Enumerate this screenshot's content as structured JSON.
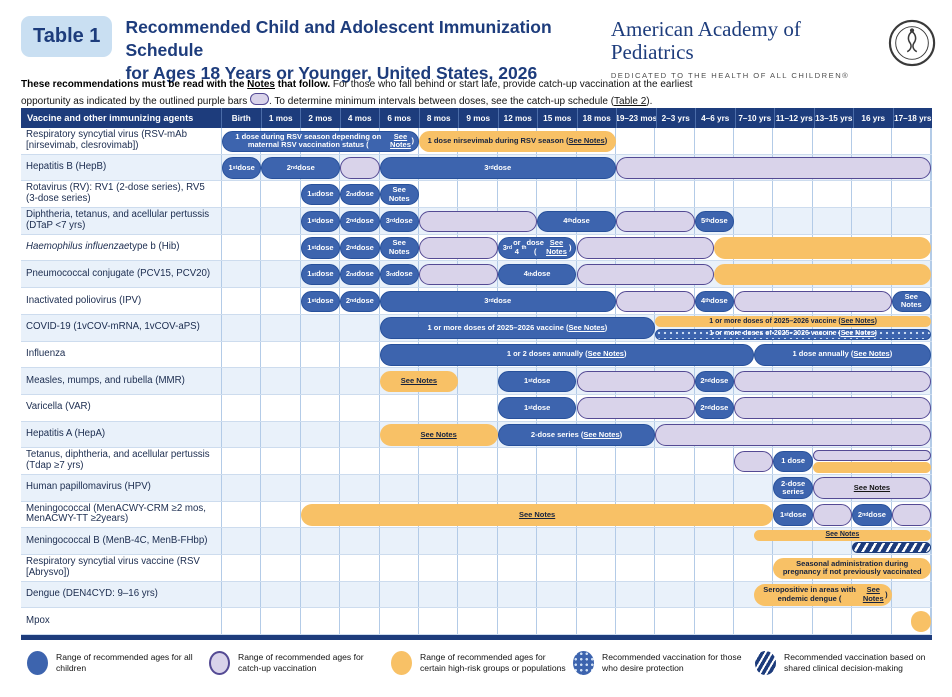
{
  "header": {
    "table_label": "Table 1",
    "title_line1": "Recommended Child and Adolescent Immunization Schedule",
    "title_line2": "for Ages 18 Years or Younger, United States, 2026",
    "aap_name": "American Academy of Pediatrics",
    "aap_tagline": "DEDICATED TO THE HEALTH OF ALL CHILDREN®"
  },
  "intro": {
    "bold": "These recommendations must be read with the *Notes* that follow.",
    "mid": " For those who fall behind or start late, provide catch-up vaccination at the earliest opportunity as indicated by the outlined purple bars ",
    "end": ". To determine minimum intervals between doses, see the catch-up schedule (*Table 2*)."
  },
  "colors": {
    "navy": "#1d3c7c",
    "blue_bar": "#3d64ae",
    "purple_fill": "#d9d3ea",
    "purple_border": "#544a94",
    "orange_bar": "#f8c166",
    "pale_row": "#e9f1fa",
    "grid_line": "#b3cbe7"
  },
  "table": {
    "corner_label": "Vaccine and other immunizing agents",
    "columns": [
      "Birth",
      "1 mos",
      "2 mos",
      "4 mos",
      "6 mos",
      "8 mos",
      "9 mos",
      "12 mos",
      "15 mos",
      "18 mos",
      "19–23 mos",
      "2–3 yrs",
      "4–6 yrs",
      "7–10 yrs",
      "11–12 yrs",
      "13–15 yrs",
      "16 yrs",
      "17–18 yrs"
    ],
    "rows": [
      {
        "label": "Respiratory syncytial virus (RSV-mAb [nirsevimab, clesrovimab])",
        "bars": [
          {
            "type": "blue",
            "lane": "full",
            "start": 0,
            "end": 5,
            "label": "1 dose during RSV season depending on maternal RSV vaccination status (*See Notes*)"
          },
          {
            "type": "orange",
            "lane": "full",
            "start": 5,
            "end": 10,
            "label": "1 dose nirsevimab during RSV season (*See Notes*)"
          }
        ]
      },
      {
        "label": "Hepatitis B (HepB)",
        "bars": [
          {
            "type": "blue",
            "lane": "full",
            "start": 0,
            "end": 1,
            "label": "1^st^ dose"
          },
          {
            "type": "blue",
            "lane": "full",
            "start": 1,
            "end": 3,
            "label": "2^nd^ dose"
          },
          {
            "type": "purple",
            "lane": "full",
            "start": 3,
            "end": 4,
            "label": ""
          },
          {
            "type": "blue",
            "lane": "full",
            "start": 4,
            "end": 10,
            "label": "3^rd^ dose"
          },
          {
            "type": "purple",
            "lane": "full",
            "start": 10,
            "end": 18,
            "label": ""
          }
        ]
      },
      {
        "label": "Rotavirus (RV): RV1 (2-dose series), RV5 (3-dose series)",
        "bars": [
          {
            "type": "blue",
            "lane": "full",
            "start": 2,
            "end": 3,
            "label": "1^st^ dose"
          },
          {
            "type": "blue",
            "lane": "full",
            "start": 3,
            "end": 4,
            "label": "2^nd^ dose"
          },
          {
            "type": "blue",
            "lane": "full",
            "start": 4,
            "end": 5,
            "label": "See Notes"
          }
        ]
      },
      {
        "label": "Diphtheria, tetanus, and acellular pertussis (DTaP <7 yrs)",
        "bars": [
          {
            "type": "blue",
            "lane": "full",
            "start": 2,
            "end": 3,
            "label": "1^st^ dose"
          },
          {
            "type": "blue",
            "lane": "full",
            "start": 3,
            "end": 4,
            "label": "2^nd^ dose"
          },
          {
            "type": "blue",
            "lane": "full",
            "start": 4,
            "end": 5,
            "label": "3^rd^ dose"
          },
          {
            "type": "purple",
            "lane": "full",
            "start": 5,
            "end": 8,
            "label": ""
          },
          {
            "type": "blue",
            "lane": "full",
            "start": 8,
            "end": 10,
            "label": "4^th^ dose"
          },
          {
            "type": "purple",
            "lane": "full",
            "start": 10,
            "end": 12,
            "label": ""
          },
          {
            "type": "blue",
            "lane": "full",
            "start": 12,
            "end": 13,
            "label": "5^th^ dose"
          }
        ]
      },
      {
        "label": "_Haemophilus influenzae_ type b (Hib)",
        "bars": [
          {
            "type": "blue",
            "lane": "full",
            "start": 2,
            "end": 3,
            "label": "1^st^ dose"
          },
          {
            "type": "blue",
            "lane": "full",
            "start": 3,
            "end": 4,
            "label": "2^nd^ dose"
          },
          {
            "type": "blue",
            "lane": "full",
            "start": 4,
            "end": 5,
            "label": "See Notes"
          },
          {
            "type": "purple",
            "lane": "full",
            "start": 5,
            "end": 7,
            "label": ""
          },
          {
            "type": "blue",
            "lane": "full",
            "start": 7,
            "end": 9,
            "label": "3^rd^ or 4^th^ dose (*See Notes*)"
          },
          {
            "type": "purple",
            "lane": "full",
            "start": 9,
            "end": 12.5,
            "label": ""
          },
          {
            "type": "orange",
            "lane": "full",
            "start": 12.5,
            "end": 18,
            "label": ""
          }
        ]
      },
      {
        "label": "Pneumococcal conjugate (PCV15, PCV20)",
        "bars": [
          {
            "type": "blue",
            "lane": "full",
            "start": 2,
            "end": 3,
            "label": "1^st^ dose"
          },
          {
            "type": "blue",
            "lane": "full",
            "start": 3,
            "end": 4,
            "label": "2^nd^ dose"
          },
          {
            "type": "blue",
            "lane": "full",
            "start": 4,
            "end": 5,
            "label": "3^rd^ dose"
          },
          {
            "type": "purple",
            "lane": "full",
            "start": 5,
            "end": 7,
            "label": ""
          },
          {
            "type": "blue",
            "lane": "full",
            "start": 7,
            "end": 9,
            "label": "4^th^ dose"
          },
          {
            "type": "purple",
            "lane": "full",
            "start": 9,
            "end": 12.5,
            "label": ""
          },
          {
            "type": "orange",
            "lane": "full",
            "start": 12.5,
            "end": 18,
            "label": ""
          }
        ]
      },
      {
        "label": "Inactivated poliovirus (IPV)",
        "bars": [
          {
            "type": "blue",
            "lane": "full",
            "start": 2,
            "end": 3,
            "label": "1^st^ dose"
          },
          {
            "type": "blue",
            "lane": "full",
            "start": 3,
            "end": 4,
            "label": "2^nd^ dose"
          },
          {
            "type": "blue",
            "lane": "full",
            "start": 4,
            "end": 10,
            "label": "3^rd^ dose"
          },
          {
            "type": "purple",
            "lane": "full",
            "start": 10,
            "end": 12,
            "label": ""
          },
          {
            "type": "blue",
            "lane": "full",
            "start": 12,
            "end": 13,
            "label": "4^th^ dose"
          },
          {
            "type": "purple",
            "lane": "full",
            "start": 13,
            "end": 17,
            "label": ""
          },
          {
            "type": "blue",
            "lane": "full",
            "start": 17,
            "end": 18,
            "label": "See Notes"
          }
        ]
      },
      {
        "label": "COVID-19 (1vCOV-mRNA, 1vCOV-aPS)",
        "bars": [
          {
            "type": "blue",
            "lane": "full",
            "start": 4,
            "end": 11,
            "label": "1 or more doses of 2025–2026 vaccine (*See Notes*)"
          },
          {
            "type": "orange",
            "lane": "top",
            "start": 11,
            "end": 18,
            "label": "1 or more doses of 2025–2026 vaccine (*See Notes*)"
          },
          {
            "type": "dotted",
            "lane": "bottom",
            "start": 11,
            "end": 18,
            "label": "1 or more doses of 2025–2026 vaccine (*See Notes*)"
          }
        ]
      },
      {
        "label": "Influenza",
        "bars": [
          {
            "type": "blue",
            "lane": "full",
            "start": 4,
            "end": 13.5,
            "label": "1 or 2 doses annually (*See Notes*)"
          },
          {
            "type": "blue",
            "lane": "full",
            "start": 13.5,
            "end": 18,
            "label": "1 dose annually (*See Notes*)"
          }
        ]
      },
      {
        "label": "Measles, mumps, and rubella (MMR)",
        "bars": [
          {
            "type": "orange",
            "lane": "full",
            "start": 4,
            "end": 6,
            "label": "*See Notes*"
          },
          {
            "type": "blue",
            "lane": "full",
            "start": 7,
            "end": 9,
            "label": "1^st^ dose"
          },
          {
            "type": "purple",
            "lane": "full",
            "start": 9,
            "end": 12,
            "label": ""
          },
          {
            "type": "blue",
            "lane": "full",
            "start": 12,
            "end": 13,
            "label": "2^nd^ dose"
          },
          {
            "type": "purple",
            "lane": "full",
            "start": 13,
            "end": 18,
            "label": ""
          }
        ]
      },
      {
        "label": "Varicella (VAR)",
        "bars": [
          {
            "type": "blue",
            "lane": "full",
            "start": 7,
            "end": 9,
            "label": "1^st^ dose"
          },
          {
            "type": "purple",
            "lane": "full",
            "start": 9,
            "end": 12,
            "label": ""
          },
          {
            "type": "blue",
            "lane": "full",
            "start": 12,
            "end": 13,
            "label": "2^nd^ dose"
          },
          {
            "type": "purple",
            "lane": "full",
            "start": 13,
            "end": 18,
            "label": ""
          }
        ]
      },
      {
        "label": "Hepatitis A (HepA)",
        "bars": [
          {
            "type": "orange",
            "lane": "full",
            "start": 4,
            "end": 7,
            "label": "*See Notes*"
          },
          {
            "type": "blue",
            "lane": "full",
            "start": 7,
            "end": 11,
            "label": "2-dose series (*See Notes*)"
          },
          {
            "type": "purple",
            "lane": "full",
            "start": 11,
            "end": 18,
            "label": ""
          }
        ]
      },
      {
        "label": "Tetanus, diphtheria, and acellular pertussis (Tdap ≥7 yrs)",
        "bars": [
          {
            "type": "purple",
            "lane": "full",
            "start": 13,
            "end": 14,
            "label": ""
          },
          {
            "type": "blue",
            "lane": "full",
            "start": 14,
            "end": 15,
            "label": "1 dose"
          },
          {
            "type": "purple",
            "lane": "top",
            "start": 15,
            "end": 18,
            "label": ""
          },
          {
            "type": "orange",
            "lane": "bottom",
            "start": 15,
            "end": 18,
            "label": ""
          }
        ]
      },
      {
        "label": "Human papillomavirus (HPV)",
        "bars": [
          {
            "type": "blue",
            "lane": "full",
            "start": 14,
            "end": 15,
            "label": "2-dose series"
          },
          {
            "type": "purple",
            "lane": "full",
            "start": 15,
            "end": 18,
            "label": "*See Notes*"
          }
        ]
      },
      {
        "label": "Meningococcal (MenACWY-CRM ≥2 mos, MenACWY-TT ≥2years)",
        "bars": [
          {
            "type": "orange",
            "lane": "full",
            "start": 2,
            "end": 14,
            "label": "*See Notes*"
          },
          {
            "type": "blue",
            "lane": "full",
            "start": 14,
            "end": 15,
            "label": "1^st^ dose"
          },
          {
            "type": "purple",
            "lane": "full",
            "start": 15,
            "end": 16,
            "label": ""
          },
          {
            "type": "blue",
            "lane": "full",
            "start": 16,
            "end": 17,
            "label": "2^nd^ dose"
          },
          {
            "type": "purple",
            "lane": "full",
            "start": 17,
            "end": 18,
            "label": ""
          }
        ]
      },
      {
        "label": "Meningococcal B (MenB-4C, MenB-FHbp)",
        "bars": [
          {
            "type": "orange",
            "lane": "top",
            "start": 13.5,
            "end": 18,
            "label": "*See Notes*"
          },
          {
            "type": "striped",
            "lane": "bottom",
            "start": 16,
            "end": 18,
            "label": ""
          }
        ]
      },
      {
        "label": "Respiratory syncytial virus vaccine (RSV [Abrysvo])",
        "bars": [
          {
            "type": "orange",
            "lane": "full",
            "start": 14,
            "end": 18,
            "label": "Seasonal administration during pregnancy if not previously vaccinated"
          }
        ]
      },
      {
        "label": "Dengue (DEN4CYD: 9–16 yrs)",
        "bars": [
          {
            "type": "orange",
            "lane": "full",
            "start": 13.5,
            "end": 17,
            "label": "Seropositive in areas with endemic dengue (*See Notes*)"
          }
        ]
      },
      {
        "label": "Mpox",
        "bars": [
          {
            "type": "orange",
            "lane": "full",
            "start": 17.5,
            "end": 18,
            "label": ""
          }
        ]
      }
    ]
  },
  "legend": [
    {
      "swatch": "blue",
      "label": "Range of recommended ages for all children"
    },
    {
      "swatch": "purple",
      "label": "Range of recommended ages for catch-up vaccination"
    },
    {
      "swatch": "orange",
      "label": "Range of recommended ages for certain high-risk groups or populations"
    },
    {
      "swatch": "dotted",
      "label": "Recommended vaccination for those who desire protection"
    },
    {
      "swatch": "striped",
      "label": "Recommended vaccination based on shared clinical decision-making"
    }
  ]
}
